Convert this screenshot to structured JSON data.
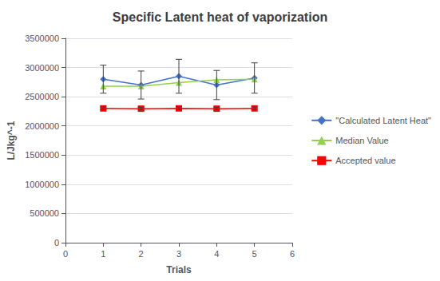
{
  "chart_data": {
    "type": "line",
    "title": "Specific Latent heat of vaporization",
    "xlabel": "Trials",
    "ylabel": "L/Jkg^-1",
    "x": [
      1,
      2,
      3,
      4,
      5
    ],
    "xlim": [
      0,
      6
    ],
    "xticks": [
      0,
      1,
      2,
      3,
      4,
      5,
      6
    ],
    "ylim": [
      0,
      3500000
    ],
    "yticks": [
      0,
      500000,
      1000000,
      1500000,
      2000000,
      2500000,
      3000000,
      3500000
    ],
    "grid": "y",
    "legend": "right",
    "series": [
      {
        "name": "\"Calculated Latent Heat\"",
        "color": "#4472C4",
        "marker": "diamond",
        "values": [
          2800000,
          2700000,
          2850000,
          2700000,
          2820000
        ],
        "errors": [
          240000,
          240000,
          290000,
          250000,
          260000
        ]
      },
      {
        "name": "Median Value",
        "color": "#92D050",
        "marker": "triangle",
        "values": [
          2680000,
          2680000,
          2740000,
          2790000,
          2800000
        ]
      },
      {
        "name": "Accepted value",
        "color": "#FF0000",
        "marker": "square",
        "values": [
          2300000,
          2295000,
          2300000,
          2295000,
          2300000
        ],
        "errors": [
          25000,
          25000,
          25000,
          25000,
          25000
        ]
      }
    ]
  }
}
